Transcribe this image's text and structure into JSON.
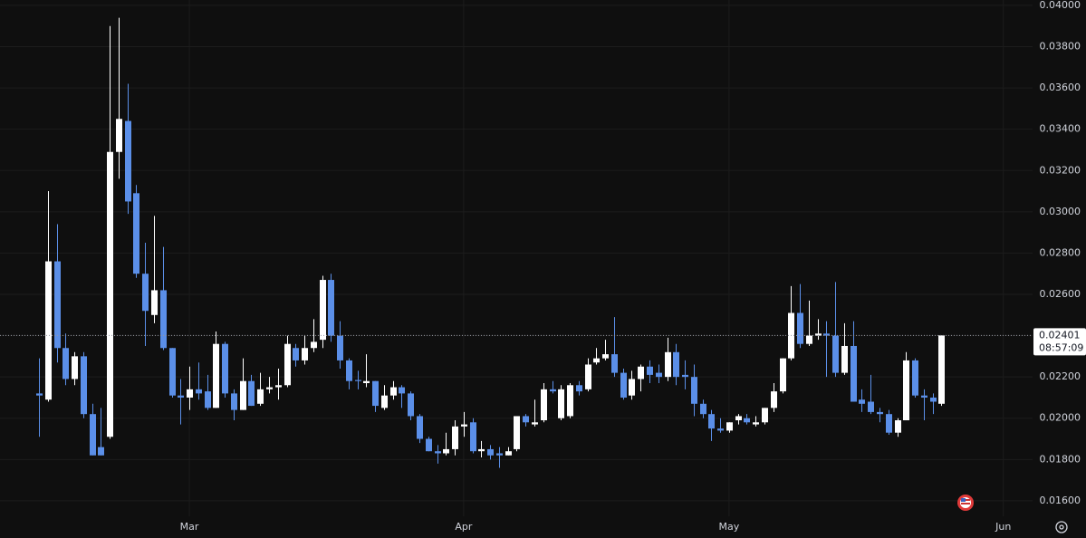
{
  "chart_data": {
    "type": "candlestick",
    "up_color": "#ffffff",
    "down_color": "#5b8fe8",
    "grid": true,
    "xlim": [
      -4.4,
      112.3
    ],
    "xticks": [
      {
        "value": 17,
        "label": "Mar"
      },
      {
        "value": 48,
        "label": "Apr"
      },
      {
        "value": 78,
        "label": "May"
      },
      {
        "value": 109,
        "label": "Jun"
      }
    ],
    "ylim": [
      0.01525,
      0.04026
    ],
    "yticks": [
      {
        "value": 0.016,
        "label": "0.01600"
      },
      {
        "value": 0.018,
        "label": "0.01800"
      },
      {
        "value": 0.02,
        "label": "0.02000"
      },
      {
        "value": 0.022,
        "label": "0.02200"
      },
      {
        "value": 0.024,
        "label": "0.02400"
      },
      {
        "value": 0.026,
        "label": "0.02600"
      },
      {
        "value": 0.028,
        "label": "0.02800"
      },
      {
        "value": 0.03,
        "label": "0.03000"
      },
      {
        "value": 0.032,
        "label": "0.03200"
      },
      {
        "value": 0.034,
        "label": "0.03400"
      },
      {
        "value": 0.036,
        "label": "0.03600"
      },
      {
        "value": 0.038,
        "label": "0.03800"
      },
      {
        "value": 0.04,
        "label": "0.04000"
      }
    ],
    "last_price": {
      "value": 0.02401,
      "label": "0.02401"
    },
    "countdown": "08:57:09",
    "open": [
      0.0212,
      0.0209,
      0.0276,
      0.0234,
      0.0219,
      0.023,
      0.0202,
      0.0186,
      0.0191,
      0.0329,
      0.0344,
      0.0309,
      0.027,
      0.025,
      0.0262,
      0.0234,
      0.0211,
      0.021,
      0.0214,
      0.0213,
      0.0205,
      0.0236,
      0.0212,
      0.0204,
      0.0218,
      0.0207,
      0.0214,
      0.0215,
      0.0216,
      0.0234,
      0.0228,
      0.0234,
      0.0238,
      0.0267,
      0.024,
      0.0228,
      0.02185,
      0.0217,
      0.0218,
      0.0205,
      0.0211,
      0.0215,
      0.0212,
      0.0201,
      0.019,
      0.0184,
      0.0183,
      0.0185,
      0.0196,
      0.0198,
      0.0184,
      0.0185,
      0.0183,
      0.0182,
      0.0185,
      0.0201,
      0.0197,
      0.0199,
      0.0214,
      0.02,
      0.0201,
      0.0216,
      0.0214,
      0.0227,
      0.0229,
      0.0231,
      0.0222,
      0.0211,
      0.0219,
      0.0225,
      0.0222,
      0.022,
      0.0232,
      0.0221,
      0.022,
      0.0207,
      0.0202,
      0.0195,
      0.0194,
      0.0199,
      0.02,
      0.0197,
      0.0198,
      0.0205,
      0.0213,
      0.0229,
      0.0251,
      0.0236,
      0.024,
      0.0241,
      0.024,
      0.0222,
      0.0235,
      0.0209,
      0.0208,
      0.0203,
      0.0202,
      0.0193,
      0.0199,
      0.0228,
      0.0211,
      0.021,
      0.0207
    ],
    "high": [
      0.0229,
      0.031,
      0.0294,
      0.0241,
      0.0232,
      0.0232,
      0.0207,
      0.0205,
      0.039,
      0.0394,
      0.0362,
      0.0313,
      0.0285,
      0.0298,
      0.0283,
      0.0234,
      0.0219,
      0.0225,
      0.0227,
      0.0221,
      0.0242,
      0.0237,
      0.0214,
      0.0229,
      0.0221,
      0.0222,
      0.022,
      0.0224,
      0.024,
      0.0236,
      0.024,
      0.0248,
      0.0269,
      0.027,
      0.0247,
      0.0229,
      0.0223,
      0.0231,
      0.0218,
      0.0216,
      0.0218,
      0.0216,
      0.0213,
      0.0202,
      0.0191,
      0.0187,
      0.0193,
      0.0199,
      0.0203,
      0.02,
      0.0189,
      0.0187,
      0.0186,
      0.0186,
      0.0201,
      0.0202,
      0.0209,
      0.0217,
      0.0218,
      0.0216,
      0.0217,
      0.0218,
      0.0229,
      0.0234,
      0.0238,
      0.0249,
      0.0224,
      0.0223,
      0.0226,
      0.0228,
      0.0226,
      0.0239,
      0.0236,
      0.0228,
      0.0226,
      0.0209,
      0.0204,
      0.02,
      0.0198,
      0.0202,
      0.0202,
      0.0201,
      0.0205,
      0.0217,
      0.0229,
      0.0264,
      0.0265,
      0.0257,
      0.0248,
      0.0247,
      0.0266,
      0.0246,
      0.0247,
      0.0214,
      0.0221,
      0.0205,
      0.0204,
      0.02,
      0.0232,
      0.0229,
      0.0214,
      0.0212,
      0.02401
    ],
    "low": [
      0.0191,
      0.0208,
      0.0227,
      0.0216,
      0.0216,
      0.02,
      0.0182,
      0.0182,
      0.019,
      0.0316,
      0.0299,
      0.0268,
      0.0235,
      0.0246,
      0.0233,
      0.021,
      0.0197,
      0.0204,
      0.0209,
      0.0204,
      0.0205,
      0.021,
      0.0199,
      0.0204,
      0.0206,
      0.0206,
      0.0212,
      0.0209,
      0.0215,
      0.0225,
      0.0226,
      0.0232,
      0.0234,
      0.0237,
      0.0224,
      0.0214,
      0.0214,
      0.0215,
      0.0203,
      0.0204,
      0.0209,
      0.0205,
      0.0199,
      0.0188,
      0.0184,
      0.0178,
      0.0182,
      0.0182,
      0.0191,
      0.0183,
      0.0181,
      0.018,
      0.0176,
      0.0182,
      0.0184,
      0.0196,
      0.0196,
      0.0198,
      0.0212,
      0.0199,
      0.02,
      0.0211,
      0.0213,
      0.0226,
      0.0228,
      0.022,
      0.0209,
      0.0209,
      0.0213,
      0.0217,
      0.0217,
      0.0218,
      0.0216,
      0.0214,
      0.0201,
      0.02,
      0.0189,
      0.0193,
      0.0193,
      0.0197,
      0.0197,
      0.0196,
      0.0197,
      0.0203,
      0.0212,
      0.0228,
      0.0234,
      0.0235,
      0.0238,
      0.022,
      0.022,
      0.0221,
      0.0208,
      0.0203,
      0.0202,
      0.0198,
      0.0192,
      0.0191,
      0.0199,
      0.021,
      0.0199,
      0.0202,
      0.0206
    ],
    "close": [
      0.0211,
      0.0276,
      0.0234,
      0.0219,
      0.023,
      0.0202,
      0.0182,
      0.0182,
      0.0329,
      0.0345,
      0.0305,
      0.027,
      0.0252,
      0.0262,
      0.0234,
      0.0211,
      0.021,
      0.0214,
      0.0212,
      0.0205,
      0.0236,
      0.0212,
      0.0204,
      0.0218,
      0.0206,
      0.0214,
      0.0215,
      0.0216,
      0.0236,
      0.0228,
      0.0234,
      0.0237,
      0.0267,
      0.024,
      0.0228,
      0.0218,
      0.0218,
      0.0218,
      0.0206,
      0.0211,
      0.0215,
      0.0212,
      0.0201,
      0.019,
      0.0184,
      0.0183,
      0.0185,
      0.0196,
      0.0197,
      0.0184,
      0.0185,
      0.0182,
      0.0182,
      0.0184,
      0.0201,
      0.0198,
      0.0198,
      0.0214,
      0.0213,
      0.0214,
      0.0216,
      0.0213,
      0.0226,
      0.0229,
      0.0231,
      0.0222,
      0.021,
      0.0219,
      0.0225,
      0.0221,
      0.022,
      0.0232,
      0.022,
      0.022,
      0.0207,
      0.0202,
      0.0195,
      0.0194,
      0.0198,
      0.0201,
      0.0198,
      0.0198,
      0.0205,
      0.0213,
      0.0229,
      0.0251,
      0.0236,
      0.024,
      0.0241,
      0.024,
      0.0222,
      0.0235,
      0.0208,
      0.0207,
      0.0203,
      0.0202,
      0.0193,
      0.0199,
      0.0228,
      0.0211,
      0.021,
      0.0208,
      0.02401
    ]
  }
}
